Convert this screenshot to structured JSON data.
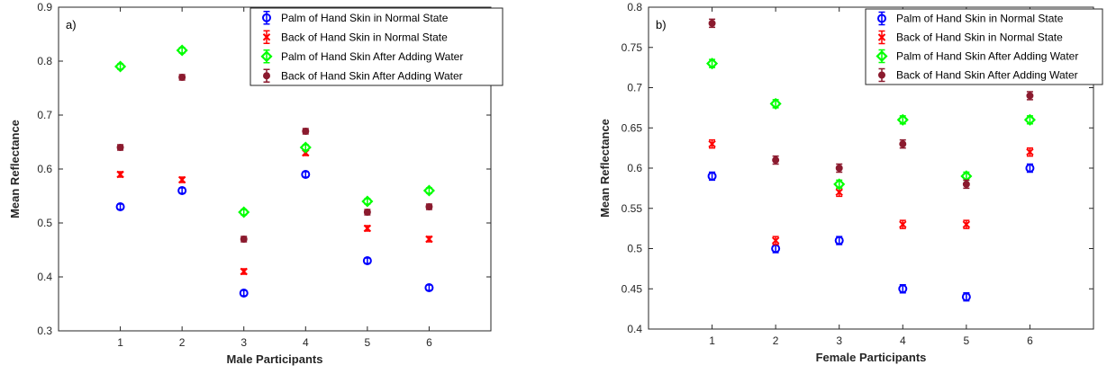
{
  "chart_data": [
    {
      "type": "scatter",
      "panel_label": "a)",
      "xlabel": "Male Participants",
      "ylabel": "Mean Reflectance",
      "xlim": [
        0,
        7
      ],
      "ylim": [
        0.3,
        0.9
      ],
      "xticks": [
        1,
        2,
        3,
        4,
        5,
        6
      ],
      "yticks": [
        0.3,
        0.4,
        0.5,
        0.6,
        0.7,
        0.8,
        0.9
      ],
      "ytick_labels": [
        "0.3",
        "0.4",
        "0.5",
        "0.6",
        "0.7",
        "0.8",
        "0.9"
      ],
      "error": 0.005,
      "legend_position": "top-right",
      "series": [
        {
          "name": "Palm of Hand Skin in Normal State",
          "marker": "circle",
          "color": "#0000ff",
          "values": [
            0.53,
            0.56,
            0.37,
            0.59,
            0.43,
            0.38
          ]
        },
        {
          "name": "Back of Hand Skin in Normal State",
          "marker": "x",
          "color": "#ff0000",
          "values": [
            0.59,
            0.58,
            0.41,
            0.63,
            0.49,
            0.47
          ]
        },
        {
          "name": "Palm of Hand Skin After Adding Water",
          "marker": "diamond",
          "color": "#00ff00",
          "values": [
            0.79,
            0.82,
            0.52,
            0.64,
            0.54,
            0.56
          ]
        },
        {
          "name": "Back of Hand Skin After Adding Water",
          "marker": "dot",
          "color": "#8b1a2e",
          "values": [
            0.64,
            0.77,
            0.47,
            0.67,
            0.52,
            0.53
          ]
        }
      ]
    },
    {
      "type": "scatter",
      "panel_label": "b)",
      "xlabel": "Female Participants",
      "ylabel": "Mean Reflectance",
      "xlim": [
        0,
        7
      ],
      "ylim": [
        0.4,
        0.8
      ],
      "xticks": [
        1,
        2,
        3,
        4,
        5,
        6
      ],
      "yticks": [
        0.4,
        0.45,
        0.5,
        0.55,
        0.6,
        0.65,
        0.7,
        0.75,
        0.8
      ],
      "ytick_labels": [
        "0.4",
        "0.45",
        "0.5",
        "0.55",
        "0.6",
        "0.65",
        "0.7",
        "0.75",
        "0.8"
      ],
      "error": 0.005,
      "legend_position": "top-right",
      "series": [
        {
          "name": "Palm of Hand Skin in Normal State",
          "marker": "circle",
          "color": "#0000ff",
          "values": [
            0.59,
            0.5,
            0.51,
            0.45,
            0.44,
            0.6
          ]
        },
        {
          "name": "Back of Hand Skin in Normal State",
          "marker": "x",
          "color": "#ff0000",
          "values": [
            0.63,
            0.51,
            0.57,
            0.53,
            0.53,
            0.62
          ]
        },
        {
          "name": "Palm of Hand Skin After Adding Water",
          "marker": "diamond",
          "color": "#00ff00",
          "values": [
            0.73,
            0.68,
            0.58,
            0.66,
            0.59,
            0.66
          ]
        },
        {
          "name": "Back of Hand Skin After Adding Water",
          "marker": "dot",
          "color": "#8b1a2e",
          "values": [
            0.78,
            0.61,
            0.6,
            0.63,
            0.58,
            0.69
          ]
        }
      ]
    }
  ]
}
